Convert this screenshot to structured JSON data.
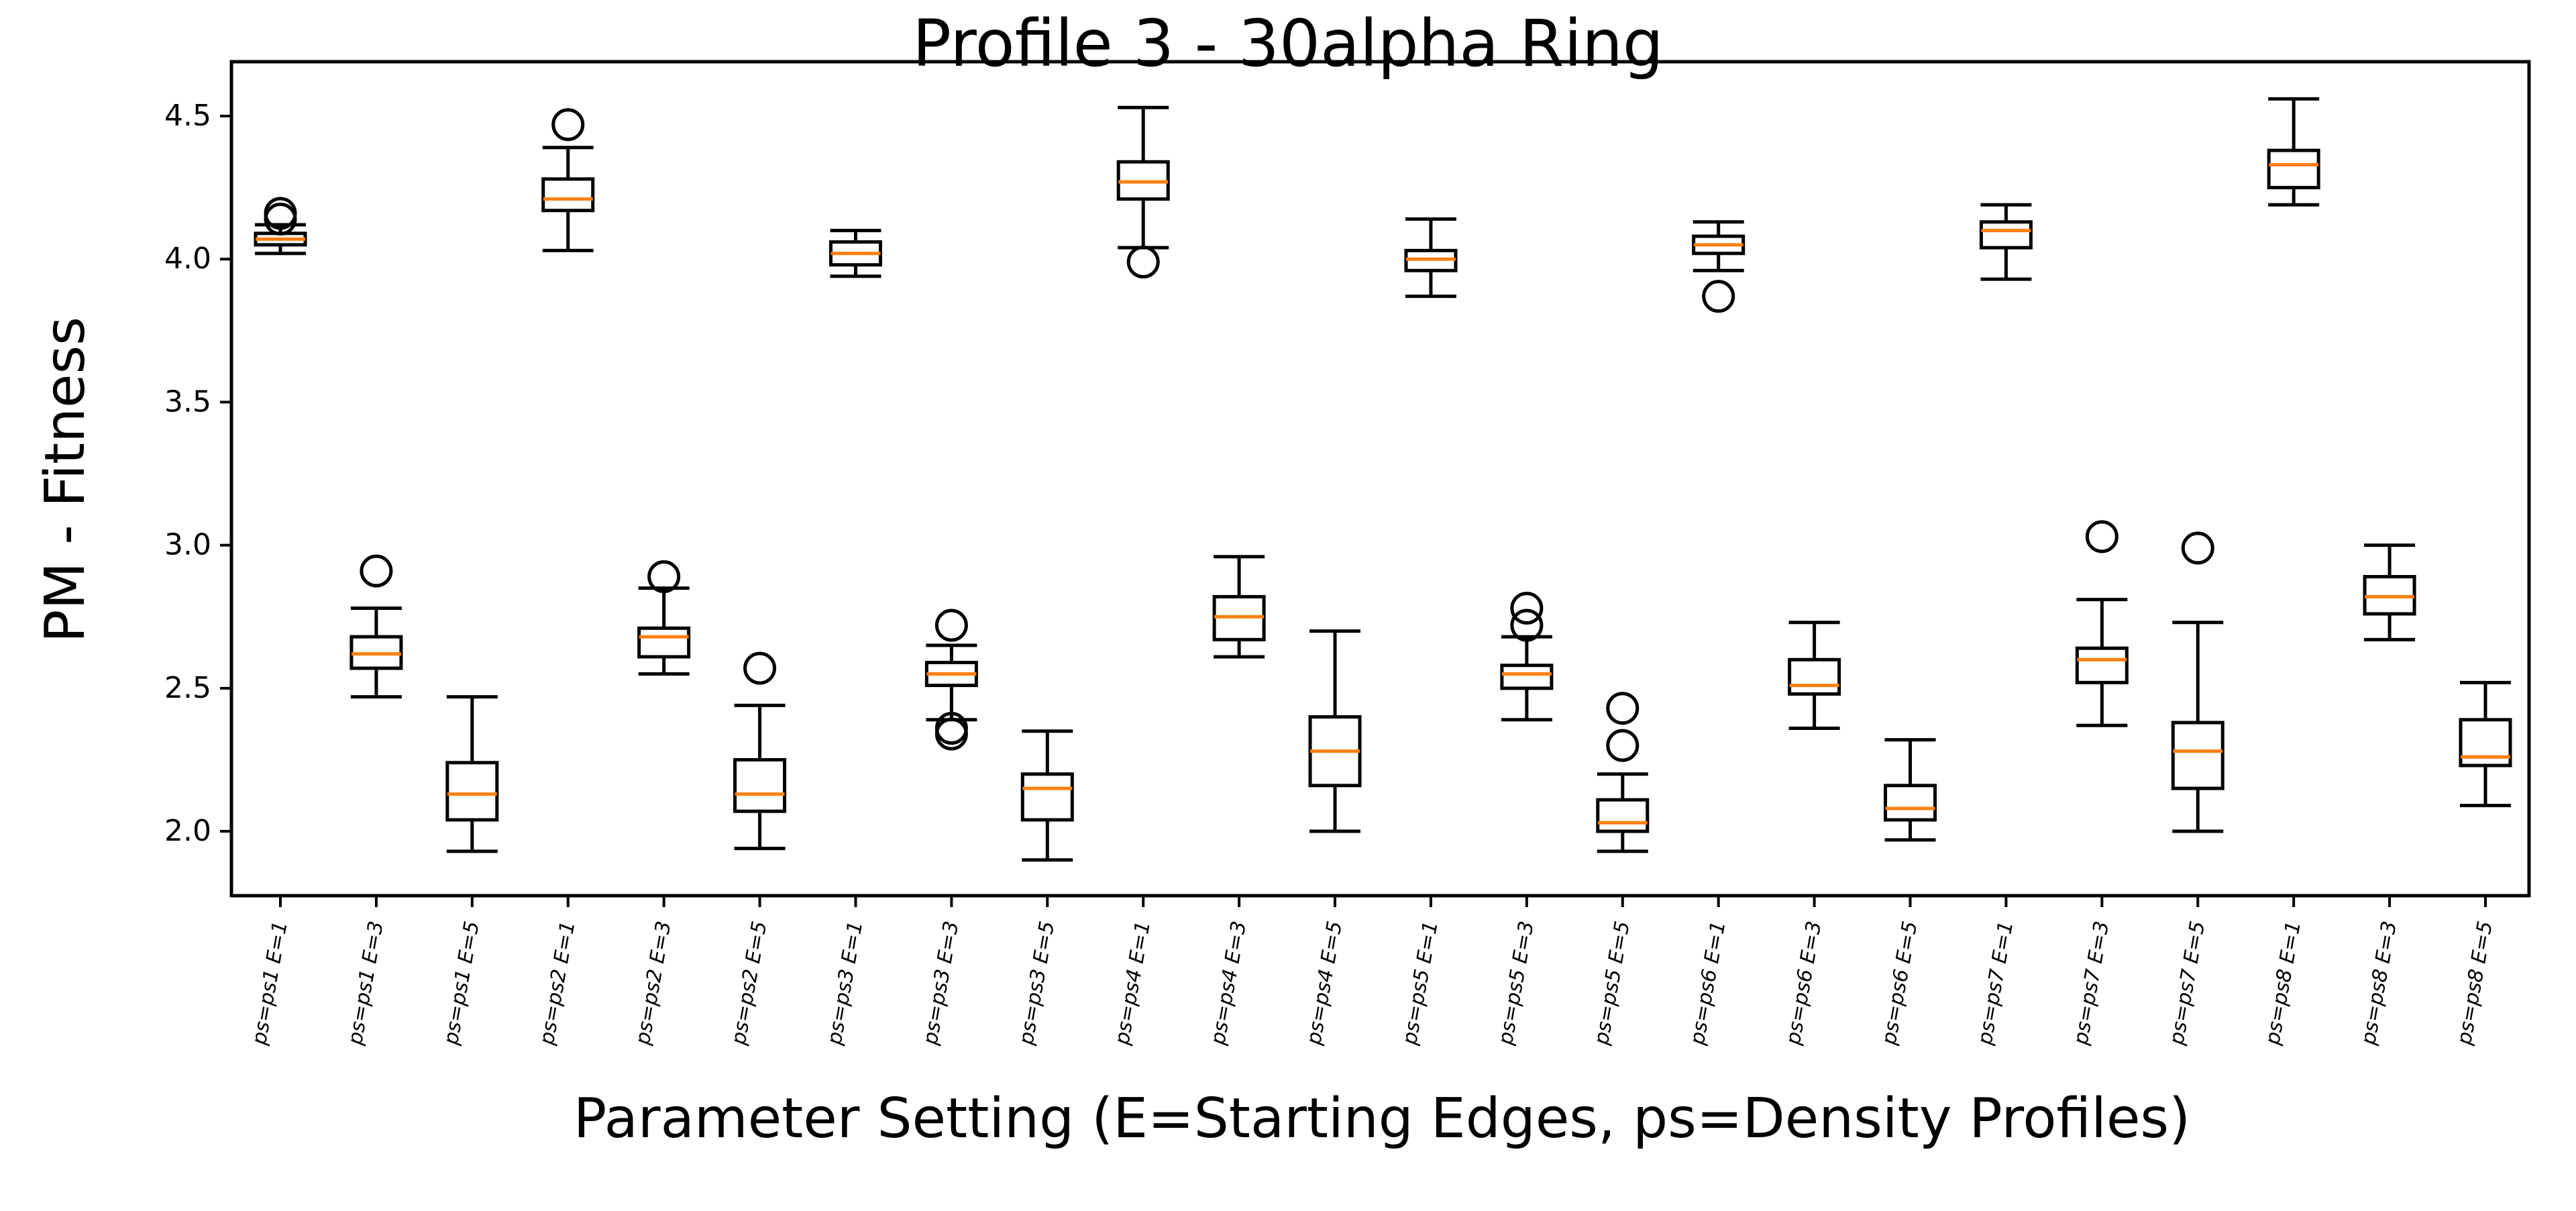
{
  "chart_data": {
    "type": "boxplot",
    "title": "Profile 3 - 30alpha Ring",
    "xlabel": "Parameter Setting (E=Starting Edges, ps=Density Profiles)",
    "ylabel": "PM - Fitness",
    "ylim": [
      1.775,
      4.69
    ],
    "yticks": [
      2.0,
      2.5,
      3.0,
      3.5,
      4.0,
      4.5
    ],
    "ytick_labels": [
      "2.0",
      "2.5",
      "3.0",
      "3.5",
      "4.0",
      "4.5"
    ],
    "grid": false,
    "categories": [
      "ps=ps1 E=1",
      "ps=ps1 E=3",
      "ps=ps1 E=5",
      "ps=ps2 E=1",
      "ps=ps2 E=3",
      "ps=ps2 E=5",
      "ps=ps3 E=1",
      "ps=ps3 E=3",
      "ps=ps3 E=5",
      "ps=ps4 E=1",
      "ps=ps4 E=3",
      "ps=ps4 E=5",
      "ps=ps5 E=1",
      "ps=ps5 E=3",
      "ps=ps5 E=5",
      "ps=ps6 E=1",
      "ps=ps6 E=3",
      "ps=ps6 E=5",
      "ps=ps7 E=1",
      "ps=ps7 E=3",
      "ps=ps7 E=5",
      "ps=ps8 E=1",
      "ps=ps8 E=3",
      "ps=ps8 E=5"
    ],
    "boxes": [
      {
        "whisker_low": 4.02,
        "q1": 4.05,
        "median": 4.07,
        "q3": 4.09,
        "whisker_high": 4.12,
        "outliers": [
          4.14,
          4.16
        ]
      },
      {
        "whisker_low": 2.47,
        "q1": 2.57,
        "median": 2.62,
        "q3": 2.68,
        "whisker_high": 2.78,
        "outliers": [
          2.91
        ]
      },
      {
        "whisker_low": 1.93,
        "q1": 2.04,
        "median": 2.13,
        "q3": 2.24,
        "whisker_high": 2.47,
        "outliers": []
      },
      {
        "whisker_low": 4.03,
        "q1": 4.17,
        "median": 4.21,
        "q3": 4.28,
        "whisker_high": 4.39,
        "outliers": [
          4.47
        ]
      },
      {
        "whisker_low": 2.55,
        "q1": 2.61,
        "median": 2.68,
        "q3": 2.71,
        "whisker_high": 2.85,
        "outliers": [
          2.89
        ]
      },
      {
        "whisker_low": 1.94,
        "q1": 2.07,
        "median": 2.13,
        "q3": 2.25,
        "whisker_high": 2.44,
        "outliers": [
          2.57
        ]
      },
      {
        "whisker_low": 3.94,
        "q1": 3.98,
        "median": 4.02,
        "q3": 4.06,
        "whisker_high": 4.1,
        "outliers": []
      },
      {
        "whisker_low": 2.39,
        "q1": 2.51,
        "median": 2.55,
        "q3": 2.59,
        "whisker_high": 2.65,
        "outliers": [
          2.72,
          2.36,
          2.34
        ]
      },
      {
        "whisker_low": 1.9,
        "q1": 2.04,
        "median": 2.15,
        "q3": 2.2,
        "whisker_high": 2.35,
        "outliers": []
      },
      {
        "whisker_low": 4.04,
        "q1": 4.21,
        "median": 4.27,
        "q3": 4.34,
        "whisker_high": 4.53,
        "outliers": [
          3.99
        ]
      },
      {
        "whisker_low": 2.61,
        "q1": 2.67,
        "median": 2.75,
        "q3": 2.82,
        "whisker_high": 2.96,
        "outliers": []
      },
      {
        "whisker_low": 2.0,
        "q1": 2.16,
        "median": 2.28,
        "q3": 2.4,
        "whisker_high": 2.7,
        "outliers": []
      },
      {
        "whisker_low": 3.87,
        "q1": 3.96,
        "median": 4.0,
        "q3": 4.03,
        "whisker_high": 4.14,
        "outliers": []
      },
      {
        "whisker_low": 2.39,
        "q1": 2.5,
        "median": 2.55,
        "q3": 2.58,
        "whisker_high": 2.68,
        "outliers": [
          2.72,
          2.78
        ]
      },
      {
        "whisker_low": 1.93,
        "q1": 2.0,
        "median": 2.03,
        "q3": 2.11,
        "whisker_high": 2.2,
        "outliers": [
          2.3,
          2.43
        ]
      },
      {
        "whisker_low": 3.96,
        "q1": 4.02,
        "median": 4.05,
        "q3": 4.08,
        "whisker_high": 4.13,
        "outliers": [
          3.87
        ]
      },
      {
        "whisker_low": 2.36,
        "q1": 2.48,
        "median": 2.51,
        "q3": 2.6,
        "whisker_high": 2.73,
        "outliers": []
      },
      {
        "whisker_low": 1.97,
        "q1": 2.04,
        "median": 2.08,
        "q3": 2.16,
        "whisker_high": 2.32,
        "outliers": []
      },
      {
        "whisker_low": 3.93,
        "q1": 4.04,
        "median": 4.1,
        "q3": 4.13,
        "whisker_high": 4.19,
        "outliers": []
      },
      {
        "whisker_low": 2.37,
        "q1": 2.52,
        "median": 2.6,
        "q3": 2.64,
        "whisker_high": 2.81,
        "outliers": [
          3.03
        ]
      },
      {
        "whisker_low": 2.0,
        "q1": 2.15,
        "median": 2.28,
        "q3": 2.38,
        "whisker_high": 2.73,
        "outliers": [
          2.99
        ]
      },
      {
        "whisker_low": 4.19,
        "q1": 4.25,
        "median": 4.33,
        "q3": 4.38,
        "whisker_high": 4.56,
        "outliers": []
      },
      {
        "whisker_low": 2.67,
        "q1": 2.76,
        "median": 2.82,
        "q3": 2.89,
        "whisker_high": 3.0,
        "outliers": []
      },
      {
        "whisker_low": 2.09,
        "q1": 2.23,
        "median": 2.26,
        "q3": 2.39,
        "whisker_high": 2.52,
        "outliers": []
      }
    ],
    "colors": {
      "box": "#000000",
      "median": "#ff7f0e",
      "outlier": "#000000",
      "background": "#ffffff"
    }
  }
}
